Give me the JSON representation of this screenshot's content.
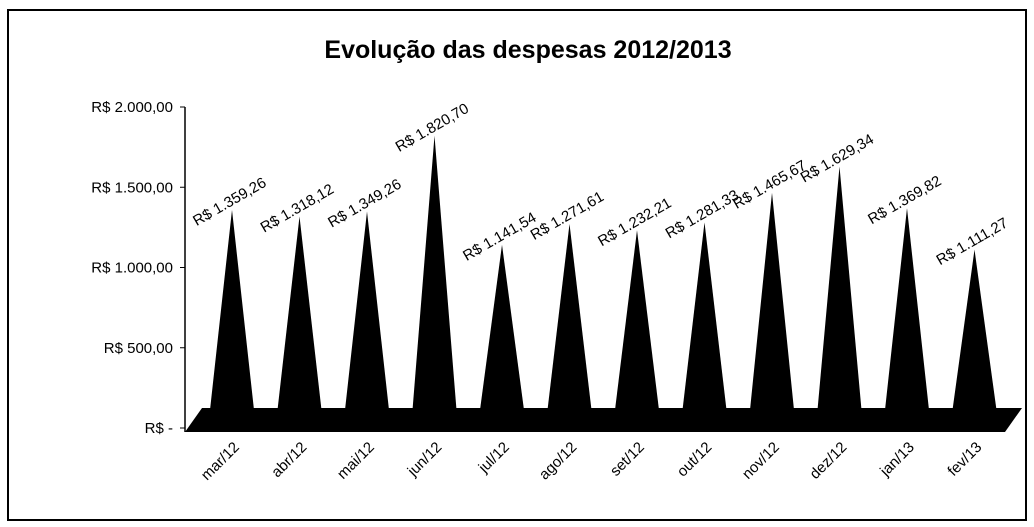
{
  "chart_data": {
    "type": "bar",
    "title": "Evolução das despesas 2012/2013",
    "categories": [
      "mar/12",
      "abr/12",
      "mai/12",
      "jun/12",
      "jul/12",
      "ago/12",
      "set/12",
      "out/12",
      "nov/12",
      "dez/12",
      "jan/13",
      "fev/13"
    ],
    "values": [
      1359.26,
      1318.12,
      1349.26,
      1820.7,
      1141.54,
      1271.61,
      1232.21,
      1281.33,
      1465.67,
      1629.34,
      1369.82,
      1111.27
    ],
    "value_labels": [
      "R$ 1.359,26",
      "R$ 1.318,12",
      "R$ 1.349,26",
      "R$ 1.820,70",
      "R$ 1.141,54",
      "R$ 1.271,61",
      "R$ 1.232,21",
      "R$ 1.281,33",
      "R$ 1.465,67",
      "R$ 1.629,34",
      "R$ 1.369,82",
      "R$ 1.111,27"
    ],
    "color": "#000000",
    "ylim": [
      0,
      2000
    ],
    "yticks": [
      {
        "value": 0,
        "label": "R$ -"
      },
      {
        "value": 500,
        "label": "R$ 500,00"
      },
      {
        "value": 1000,
        "label": "R$ 1.000,00"
      },
      {
        "value": 1500,
        "label": "R$ 1.500,00"
      },
      {
        "value": 2000,
        "label": "R$ 2.000,00"
      }
    ],
    "grid": false
  }
}
